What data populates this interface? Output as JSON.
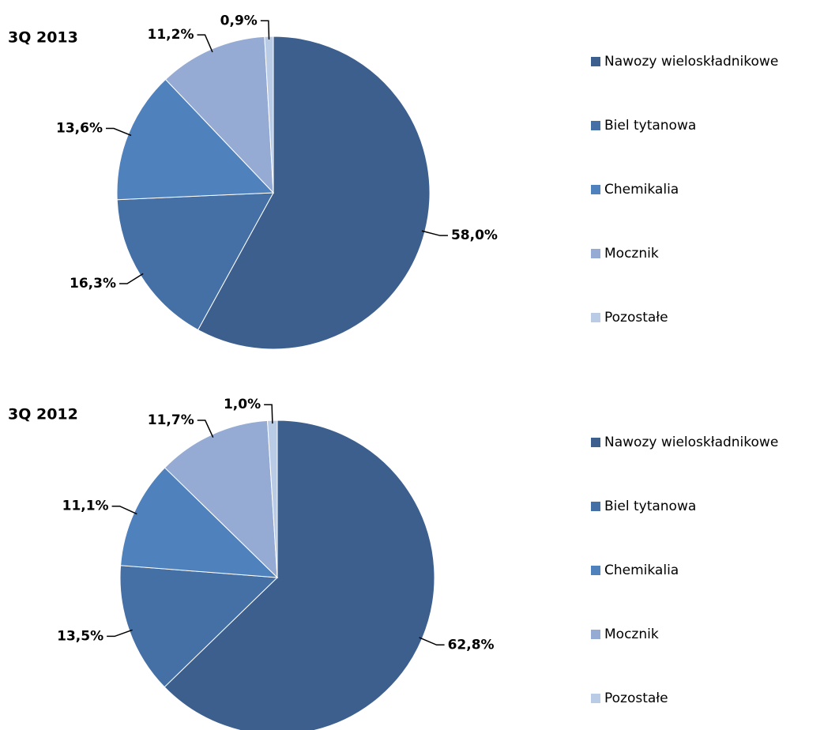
{
  "chart_data": [
    {
      "type": "pie",
      "title": "3Q 2013",
      "categories": [
        "Nawozy wieloskładnikowe",
        "Biel tytanowa",
        "Chemikalia",
        "Mocznik",
        "Pozostałe"
      ],
      "values": [
        58.0,
        16.3,
        13.6,
        11.2,
        0.9
      ],
      "value_labels": [
        "58,0%",
        "16,3%",
        "13,6%",
        "11,2%",
        "0,9%"
      ],
      "colors": [
        "#3c5f8e",
        "#4470a6",
        "#4f81bd",
        "#95abd4",
        "#b9cbe5"
      ],
      "legend": "right"
    },
    {
      "type": "pie",
      "title": "3Q 2012",
      "categories": [
        "Nawozy wieloskładnikowe",
        "Biel tytanowa",
        "Chemikalia",
        "Mocznik",
        "Pozostałe"
      ],
      "values": [
        62.8,
        13.5,
        11.1,
        11.7,
        1.0
      ],
      "value_labels": [
        "62,8%",
        "13,5%",
        "11,1%",
        "11,7%",
        "1,0%"
      ],
      "colors": [
        "#3c5f8e",
        "#4470a6",
        "#4f81bd",
        "#95abd4",
        "#b9cbe5"
      ],
      "legend": "right"
    }
  ]
}
